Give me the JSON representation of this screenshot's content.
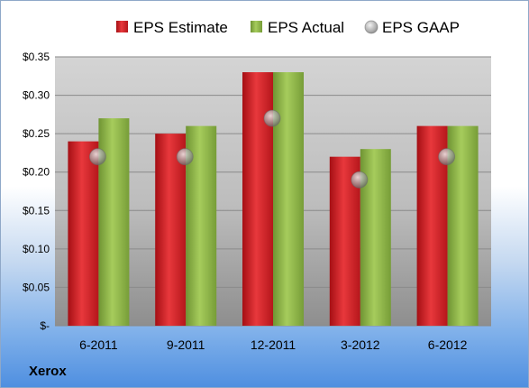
{
  "company": "Xerox",
  "colors": {
    "estimate": "#d8262b",
    "actual": "#8fb84a",
    "gaap": "#b0b0b0"
  },
  "chart_data": {
    "type": "bar",
    "categories": [
      "6-2011",
      "9-2011",
      "12-2011",
      "3-2012",
      "6-2012"
    ],
    "series": [
      {
        "name": "EPS Estimate",
        "kind": "bar",
        "values": [
          0.24,
          0.25,
          0.33,
          0.22,
          0.26
        ]
      },
      {
        "name": "EPS Actual",
        "kind": "bar",
        "values": [
          0.27,
          0.26,
          0.33,
          0.23,
          0.26
        ]
      },
      {
        "name": "EPS GAAP",
        "kind": "marker",
        "values": [
          0.22,
          0.22,
          0.27,
          0.19,
          0.22
        ]
      }
    ],
    "ylim": [
      0,
      0.35
    ],
    "y_ticks": [
      {
        "value": 0.35,
        "label": "$0.35"
      },
      {
        "value": 0.3,
        "label": "$0.30"
      },
      {
        "value": 0.25,
        "label": "$0.25"
      },
      {
        "value": 0.2,
        "label": "$0.20"
      },
      {
        "value": 0.15,
        "label": "$0.15"
      },
      {
        "value": 0.1,
        "label": "$0.10"
      },
      {
        "value": 0.05,
        "label": "$0.05"
      },
      {
        "value": 0.0,
        "label": "$-"
      }
    ],
    "grid": true,
    "legend": "top"
  }
}
